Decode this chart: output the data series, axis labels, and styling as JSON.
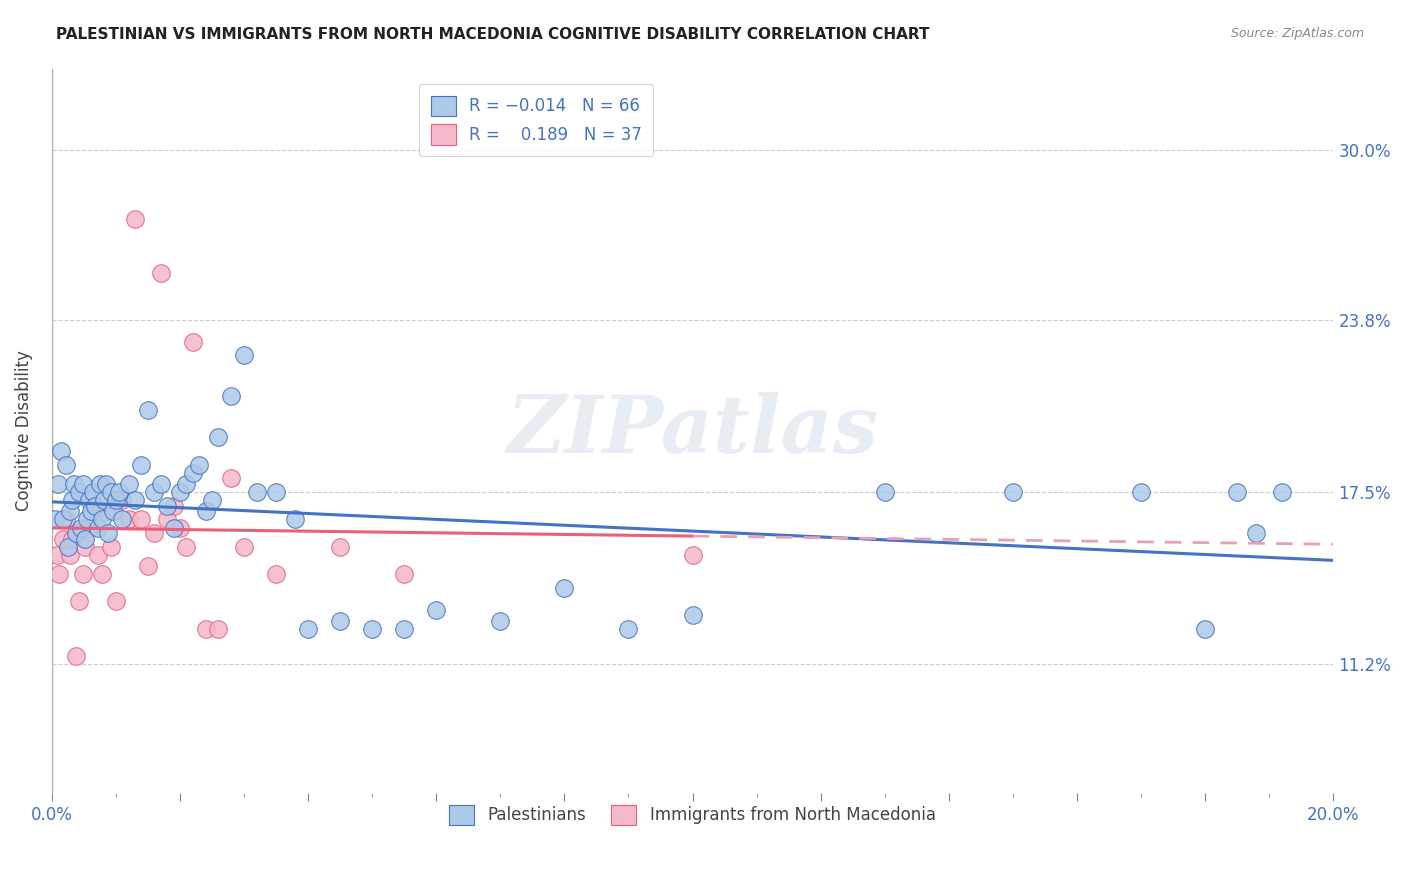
{
  "title": "PALESTINIAN VS IMMIGRANTS FROM NORTH MACEDONIA COGNITIVE DISABILITY CORRELATION CHART",
  "source": "Source: ZipAtlas.com",
  "ylabel": "Cognitive Disability",
  "ytick_labels": [
    "11.2%",
    "17.5%",
    "23.8%",
    "30.0%"
  ],
  "ytick_values": [
    11.2,
    17.5,
    23.8,
    30.0
  ],
  "xlim": [
    0.0,
    20.0
  ],
  "ylim": [
    6.5,
    33.0
  ],
  "color_blue": "#adc9e8",
  "color_pink": "#f5b8cb",
  "line_blue": "#4472c4",
  "line_pink": "#e8607a",
  "line_pink_dash": "#e8a0b4",
  "palestinians_x": [
    0.05,
    0.1,
    0.15,
    0.18,
    0.22,
    0.25,
    0.28,
    0.32,
    0.35,
    0.38,
    0.42,
    0.45,
    0.48,
    0.52,
    0.55,
    0.58,
    0.62,
    0.65,
    0.68,
    0.72,
    0.75,
    0.78,
    0.82,
    0.85,
    0.88,
    0.92,
    0.95,
    1.0,
    1.05,
    1.1,
    1.2,
    1.3,
    1.4,
    1.5,
    1.6,
    1.7,
    1.8,
    1.9,
    2.0,
    2.1,
    2.2,
    2.3,
    2.4,
    2.5,
    2.6,
    2.8,
    3.0,
    3.2,
    3.5,
    3.8,
    4.0,
    4.5,
    5.0,
    5.5,
    6.0,
    7.0,
    8.0,
    9.0,
    10.0,
    13.0,
    15.0,
    17.0,
    18.0,
    18.5,
    18.8,
    19.2
  ],
  "palestinians_y": [
    16.5,
    17.8,
    19.0,
    16.5,
    18.5,
    15.5,
    16.8,
    17.2,
    17.8,
    16.0,
    17.5,
    16.2,
    17.8,
    15.8,
    16.5,
    17.2,
    16.8,
    17.5,
    17.0,
    16.2,
    17.8,
    16.5,
    17.2,
    17.8,
    16.0,
    17.5,
    16.8,
    17.2,
    17.5,
    16.5,
    17.8,
    17.2,
    18.5,
    20.5,
    17.5,
    17.8,
    17.0,
    16.2,
    17.5,
    17.8,
    18.2,
    18.5,
    16.8,
    17.2,
    19.5,
    21.0,
    22.5,
    17.5,
    17.5,
    16.5,
    12.5,
    12.8,
    12.5,
    12.5,
    13.2,
    12.8,
    14.0,
    12.5,
    13.0,
    17.5,
    17.5,
    17.5,
    12.5,
    17.5,
    16.0,
    17.5
  ],
  "macedonia_x": [
    0.08,
    0.12,
    0.18,
    0.22,
    0.28,
    0.32,
    0.38,
    0.42,
    0.48,
    0.52,
    0.58,
    0.65,
    0.72,
    0.78,
    0.85,
    0.92,
    1.0,
    1.1,
    1.2,
    1.3,
    1.4,
    1.5,
    1.6,
    1.7,
    1.8,
    1.9,
    2.0,
    2.1,
    2.2,
    2.4,
    2.6,
    2.8,
    3.0,
    3.5,
    4.5,
    5.5,
    10.0
  ],
  "macedonia_y": [
    15.2,
    14.5,
    15.8,
    16.5,
    15.2,
    15.8,
    11.5,
    13.5,
    14.5,
    15.5,
    16.2,
    17.0,
    15.2,
    14.5,
    16.8,
    15.5,
    13.5,
    17.2,
    16.5,
    27.5,
    16.5,
    14.8,
    16.0,
    25.5,
    16.5,
    17.0,
    16.2,
    15.5,
    23.0,
    12.5,
    12.5,
    18.0,
    15.5,
    14.5,
    15.5,
    14.5,
    15.2
  ]
}
